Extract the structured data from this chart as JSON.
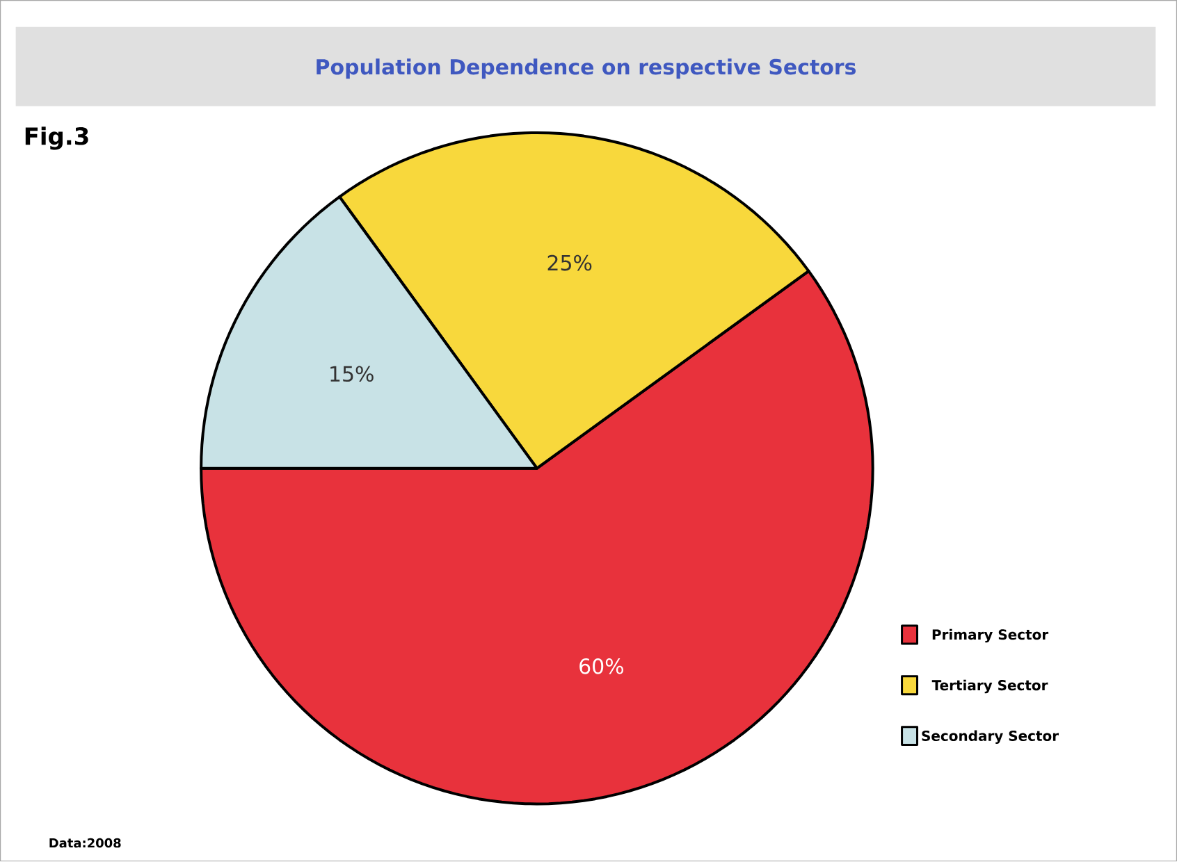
{
  "chart_data": {
    "type": "pie",
    "title": "Population Dependence on respective Sectors",
    "categories": [
      "Primary Sector",
      "Tertiary Sector",
      "Secondary Sector"
    ],
    "values": [
      60,
      25,
      15
    ],
    "colors": [
      "#e8323c",
      "#f8d83c",
      "#c8e2e6"
    ],
    "value_labels": [
      "60%",
      "25%",
      "15%"
    ],
    "legend": "bottom right",
    "annotations": [
      "Fig.3",
      "Data:2008"
    ]
  }
}
